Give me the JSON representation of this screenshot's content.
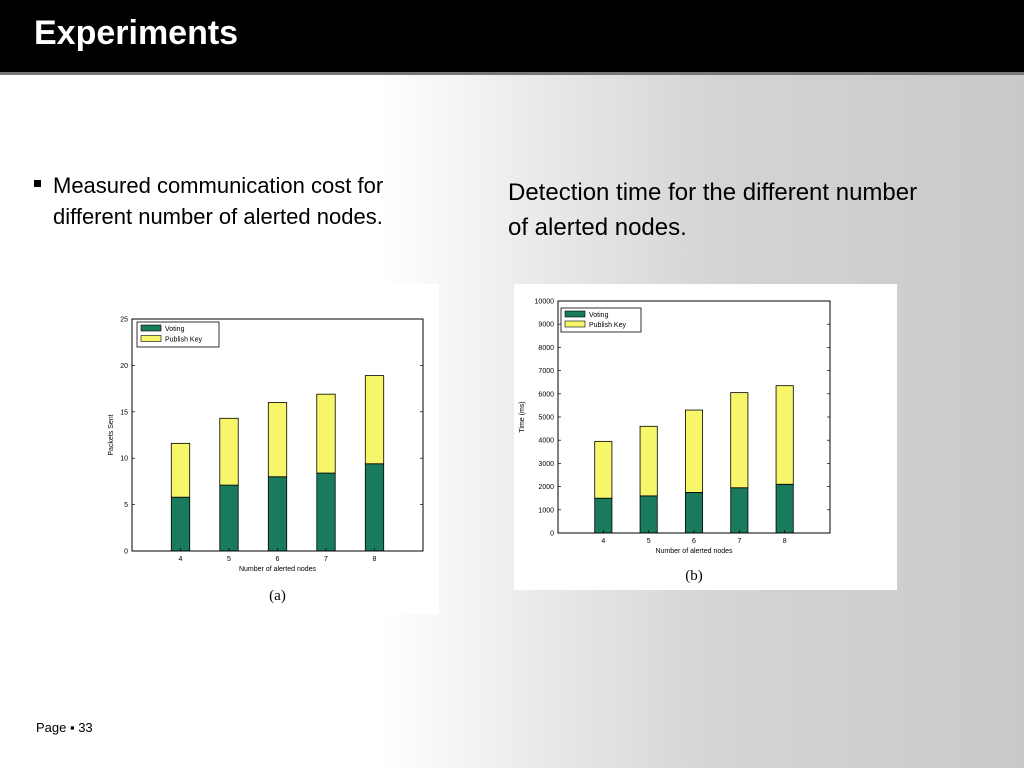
{
  "slide": {
    "title": "Experiments",
    "bullet": "Measured communication cost for different number of alerted nodes.",
    "right_text": "Detection time for the different number of alerted nodes.",
    "footer": "Page ▪ 33"
  },
  "colors": {
    "voting": "#1a7a5e",
    "publish_key": "#f7f56a"
  },
  "chart_data": [
    {
      "type": "bar",
      "stacked": true,
      "sub_label": "(a)",
      "categories": [
        "4",
        "5",
        "6",
        "7",
        "8"
      ],
      "series": [
        {
          "name": "Voting",
          "values": [
            5.8,
            7.1,
            8.0,
            8.4,
            9.4
          ]
        },
        {
          "name": "Publish Key",
          "values": [
            5.8,
            7.2,
            8.0,
            8.5,
            9.5
          ]
        }
      ],
      "xlabel": "Number of alerted nodes",
      "ylabel": "Packets Sent",
      "ylim": [
        0,
        25
      ],
      "yticks": [
        0,
        5,
        10,
        15,
        20,
        25
      ],
      "legend": "top-left",
      "grid": false
    },
    {
      "type": "bar",
      "stacked": true,
      "sub_label": "(b)",
      "categories": [
        "4",
        "5",
        "6",
        "7",
        "8"
      ],
      "series": [
        {
          "name": "Voting",
          "values": [
            1500,
            1600,
            1750,
            1950,
            2100
          ]
        },
        {
          "name": "Publish Key",
          "values": [
            2450,
            3000,
            3550,
            4100,
            4250
          ]
        }
      ],
      "xlabel": "Number of alerted nodes",
      "ylabel": "Time (ms)",
      "ylim": [
        0,
        10000
      ],
      "yticks": [
        0,
        1000,
        2000,
        3000,
        4000,
        5000,
        6000,
        7000,
        8000,
        9000,
        10000
      ],
      "legend": "top-left",
      "grid": false
    }
  ]
}
